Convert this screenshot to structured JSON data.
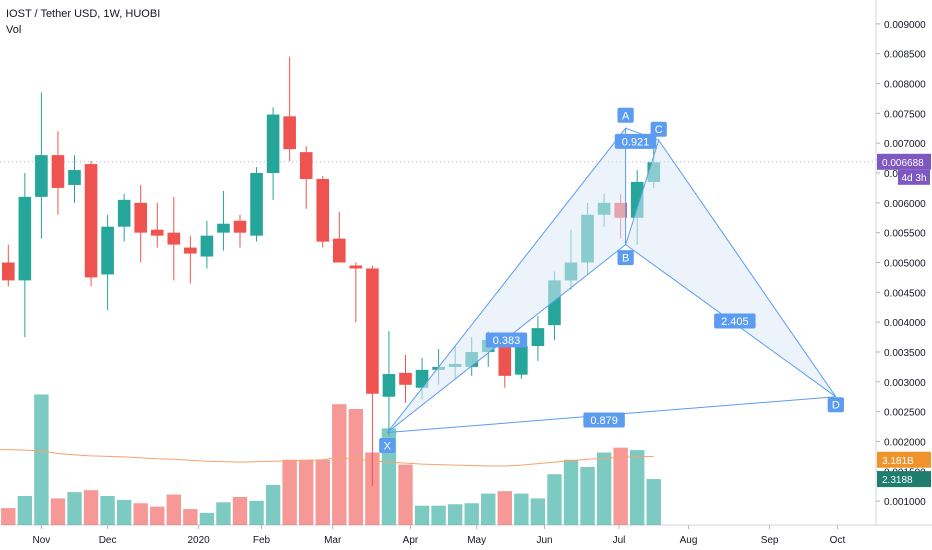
{
  "header": {
    "symbol_line": "IOST / Tether USD, 1W, HUOBI",
    "volume_label": "Vol"
  },
  "colors": {
    "up": "#26a69a",
    "down": "#ef5350",
    "pattern_line": "#5b9cf0",
    "pattern_fill": "#dce9f7",
    "label_bg": "#5b9cf0",
    "ma_line": "#f7a26b",
    "price_badge": "#7e57c2",
    "vol_badge_ma": "#f0932b",
    "vol_badge": "#1e7d6e"
  },
  "chart_data": {
    "type": "candlestick",
    "title": "IOST / Tether USD, 1W, HUOBI",
    "price_axis": {
      "ylim": [
        0.0006,
        0.0094
      ],
      "ticks": [
        "0.001000",
        "0.001500",
        "0.002000",
        "0.002500",
        "0.003000",
        "0.003500",
        "0.004000",
        "0.004500",
        "0.005000",
        "0.005500",
        "0.006000",
        "0.006500",
        "0.007000",
        "0.007500",
        "0.008000",
        "0.008500",
        "0.009000"
      ],
      "tick_values": [
        0.001,
        0.0015,
        0.002,
        0.0025,
        0.003,
        0.0035,
        0.004,
        0.0045,
        0.005,
        0.0055,
        0.006,
        0.0065,
        0.007,
        0.0075,
        0.008,
        0.0085,
        0.009
      ]
    },
    "time_axis": {
      "labels": [
        "Nov",
        "Dec",
        "2020",
        "Feb",
        "Mar",
        "Apr",
        "May",
        "Jun",
        "Jul",
        "Aug",
        "Sep",
        "Oct"
      ],
      "label_week_index": [
        2,
        6,
        11.5,
        15.3,
        19.6,
        24.3,
        28.3,
        32.4,
        36.9,
        41.1,
        46,
        50.1
      ]
    },
    "candles": [
      {
        "o": 0.005,
        "h": 0.0053,
        "l": 0.0046,
        "c": 0.0047
      },
      {
        "o": 0.0047,
        "h": 0.0065,
        "l": 0.00375,
        "c": 0.0061
      },
      {
        "o": 0.0061,
        "h": 0.00785,
        "l": 0.0054,
        "c": 0.0068
      },
      {
        "o": 0.0068,
        "h": 0.0072,
        "l": 0.0058,
        "c": 0.00625
      },
      {
        "o": 0.0063,
        "h": 0.0068,
        "l": 0.006,
        "c": 0.00655
      },
      {
        "o": 0.00665,
        "h": 0.0067,
        "l": 0.0046,
        "c": 0.00475
      },
      {
        "o": 0.0048,
        "h": 0.0058,
        "l": 0.0042,
        "c": 0.0056
      },
      {
        "o": 0.0056,
        "h": 0.00615,
        "l": 0.00535,
        "c": 0.00605
      },
      {
        "o": 0.006,
        "h": 0.0063,
        "l": 0.005,
        "c": 0.0055
      },
      {
        "o": 0.00555,
        "h": 0.006,
        "l": 0.00525,
        "c": 0.00545
      },
      {
        "o": 0.0055,
        "h": 0.0061,
        "l": 0.0047,
        "c": 0.0053
      },
      {
        "o": 0.00525,
        "h": 0.00545,
        "l": 0.00465,
        "c": 0.00515
      },
      {
        "o": 0.0051,
        "h": 0.0057,
        "l": 0.0049,
        "c": 0.00545
      },
      {
        "o": 0.0055,
        "h": 0.0062,
        "l": 0.0052,
        "c": 0.00565
      },
      {
        "o": 0.0057,
        "h": 0.0058,
        "l": 0.00525,
        "c": 0.0055
      },
      {
        "o": 0.00545,
        "h": 0.0066,
        "l": 0.00535,
        "c": 0.0065
      },
      {
        "o": 0.0065,
        "h": 0.0076,
        "l": 0.00605,
        "c": 0.00748
      },
      {
        "o": 0.00745,
        "h": 0.00845,
        "l": 0.0067,
        "c": 0.0069
      },
      {
        "o": 0.00685,
        "h": 0.00695,
        "l": 0.0059,
        "c": 0.0064
      },
      {
        "o": 0.0064,
        "h": 0.00645,
        "l": 0.00525,
        "c": 0.00535
      },
      {
        "o": 0.0054,
        "h": 0.00585,
        "l": 0.005,
        "c": 0.005
      },
      {
        "o": 0.00495,
        "h": 0.005,
        "l": 0.004,
        "c": 0.0049
      },
      {
        "o": 0.0049,
        "h": 0.00495,
        "l": 0.00125,
        "c": 0.0028
      },
      {
        "o": 0.00275,
        "h": 0.00385,
        "l": 0.0021,
        "c": 0.00313
      },
      {
        "o": 0.00315,
        "h": 0.00345,
        "l": 0.00265,
        "c": 0.00295
      },
      {
        "o": 0.0029,
        "h": 0.0034,
        "l": 0.0027,
        "c": 0.0032
      },
      {
        "o": 0.0032,
        "h": 0.00355,
        "l": 0.00295,
        "c": 0.00325
      },
      {
        "o": 0.00325,
        "h": 0.0036,
        "l": 0.00305,
        "c": 0.0033
      },
      {
        "o": 0.00325,
        "h": 0.00375,
        "l": 0.0031,
        "c": 0.0035
      },
      {
        "o": 0.0035,
        "h": 0.00385,
        "l": 0.00325,
        "c": 0.0037
      },
      {
        "o": 0.0037,
        "h": 0.00375,
        "l": 0.0029,
        "c": 0.0031
      },
      {
        "o": 0.00312,
        "h": 0.00375,
        "l": 0.00305,
        "c": 0.0036
      },
      {
        "o": 0.0036,
        "h": 0.0041,
        "l": 0.00335,
        "c": 0.0039
      },
      {
        "o": 0.00395,
        "h": 0.00485,
        "l": 0.0037,
        "c": 0.0047
      },
      {
        "o": 0.0047,
        "h": 0.00555,
        "l": 0.00455,
        "c": 0.005
      },
      {
        "o": 0.005,
        "h": 0.006,
        "l": 0.0048,
        "c": 0.0058
      },
      {
        "o": 0.0058,
        "h": 0.00615,
        "l": 0.0056,
        "c": 0.006
      },
      {
        "o": 0.006,
        "h": 0.00615,
        "l": 0.0054,
        "c": 0.00575
      },
      {
        "o": 0.00575,
        "h": 0.00655,
        "l": 0.0053,
        "c": 0.00635
      },
      {
        "o": 0.00635,
        "h": 0.007,
        "l": 0.00625,
        "c": 0.00668
      }
    ],
    "volume": {
      "ylim": [
        0,
        30
      ],
      "values": [
        3.5,
        6.0,
        27.0,
        5.5,
        6.8,
        7.2,
        6.0,
        5.2,
        4.5,
        3.8,
        6.3,
        3.3,
        2.5,
        4.7,
        5.8,
        5.0,
        8.3,
        13.5,
        13.5,
        13.5,
        25.0,
        24.0,
        15.0,
        20.0,
        12.5,
        4.0,
        4.0,
        4.3,
        4.5,
        6.5,
        7.0,
        6.5,
        5.5,
        10.5,
        13.5,
        12.0,
        15.0,
        16.0,
        15.5,
        9.5
      ],
      "ma": [
        15.6,
        15.5,
        15.3,
        14.8,
        14.5,
        14.3,
        14.2,
        14.1,
        13.9,
        13.7,
        13.6,
        13.4,
        13.2,
        13.1,
        13.0,
        13.1,
        13.2,
        13.3,
        13.4,
        13.5,
        14.0,
        13.6,
        13.3,
        13.0,
        12.8,
        12.6,
        12.5,
        12.4,
        12.3,
        12.2,
        12.2,
        12.4,
        12.7,
        13.0,
        13.3,
        13.6,
        13.8,
        14.0,
        14.1,
        14.2
      ]
    },
    "pattern": {
      "points": [
        {
          "name": "X",
          "week": 22.9,
          "price": 0.00215
        },
        {
          "name": "A",
          "week": 37.3,
          "price": 0.00725
        },
        {
          "name": "B",
          "week": 37.3,
          "price": 0.0053
        },
        {
          "name": "C",
          "week": 39.3,
          "price": 0.00705
        },
        {
          "name": "D",
          "week": 50.0,
          "price": 0.00275
        }
      ],
      "ratios": [
        {
          "text": "0.383",
          "week": 30.1,
          "price": 0.0037
        },
        {
          "text": "0.921",
          "week": 37.9,
          "price": 0.00703
        },
        {
          "text": "2.405",
          "week": 43.9,
          "price": 0.00402
        },
        {
          "text": "0.879",
          "week": 36.0,
          "price": 0.00236
        }
      ]
    },
    "price_badge": {
      "value": "0.006688",
      "countdown": "4d 3h",
      "price": 0.006688
    },
    "volume_badges": [
      {
        "value": "3.181B",
        "level": 13.5,
        "kind": "ma"
      },
      {
        "value": "2.3188",
        "level": 9.5,
        "kind": "vol"
      }
    ]
  }
}
